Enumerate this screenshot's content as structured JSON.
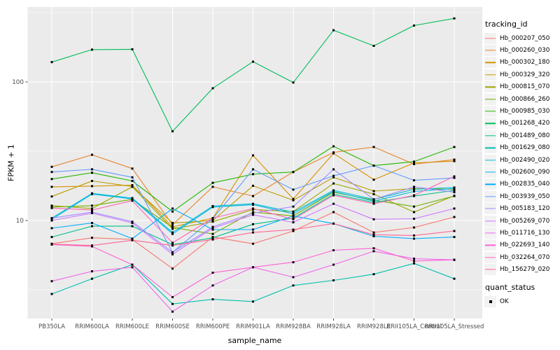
{
  "figure": {
    "background": "#FFFFFF",
    "panel_background": "#EBEBEB",
    "grid_color": "#FFFFFF",
    "legend_key_background": "#F2F2F2",
    "axis_text_color": "#4D4D4D",
    "tick_mark_color": "#333333",
    "point_color": "#000000"
  },
  "chart_data": {
    "type": "line",
    "title": "",
    "xlabel": "sample_name",
    "ylabel": "FPKM + 1",
    "y_scale": "log10",
    "y_ticks": [
      10,
      100
    ],
    "y_tick_labels": [
      "10",
      "100"
    ],
    "y_minor_breaks": [
      3.162,
      31.623,
      316.228
    ],
    "ylim": [
      1.95,
      350
    ],
    "grid": true,
    "legend_position": "right",
    "point_marker": {
      "shape": "square",
      "color": "#000000",
      "size": 3
    },
    "categories": [
      "PB350LA",
      "RRIM600LA",
      "RRIM600LE",
      "RRIM600SE",
      "RRIM600PE",
      "RRIM901LA",
      "RRIM928BA",
      "RRIM928LA",
      "RRIM928LE",
      "RRII105LA_Control",
      "RRII105LA_Stressed"
    ],
    "series": [
      {
        "name": "Hb_000207_050",
        "color": "#F8766D",
        "values": [
          6.8,
          7.5,
          7.3,
          4.5,
          7.6,
          6.8,
          8.4,
          11.5,
          8.2,
          8.9,
          10.6
        ]
      },
      {
        "name": "Hb_000260_030",
        "color": "#E9842C",
        "values": [
          24.4,
          29.8,
          23.7,
          9.3,
          17.5,
          15.0,
          22.4,
          31.0,
          33.9,
          25.5,
          27.5
        ]
      },
      {
        "name": "Hb_000302_180",
        "color": "#D69100",
        "values": [
          17.5,
          17.7,
          18.0,
          9.0,
          10.4,
          29.5,
          14.3,
          30.5,
          19.7,
          26.0,
          26.8
        ]
      },
      {
        "name": "Hb_000329_320",
        "color": "#BC9D00",
        "values": [
          14.9,
          19.3,
          17.6,
          9.6,
          10.0,
          17.8,
          14.0,
          20.5,
          16.3,
          17.0,
          16.8
        ]
      },
      {
        "name": "Hb_000815_070",
        "color": "#9CA700",
        "values": [
          12.8,
          12.2,
          17.5,
          8.7,
          9.8,
          12.0,
          11.6,
          18.5,
          15.5,
          11.5,
          15.1
        ]
      },
      {
        "name": "Hb_000866_260",
        "color": "#6FB000",
        "values": [
          12.5,
          12.8,
          14.2,
          8.9,
          8.0,
          11.5,
          10.8,
          16.0,
          14.0,
          12.6,
          15.0
        ]
      },
      {
        "name": "Hb_000985_030",
        "color": "#24B700",
        "values": [
          19.9,
          22.1,
          19.3,
          11.6,
          18.7,
          21.6,
          22.4,
          34.3,
          24.9,
          26.6,
          33.9
        ]
      },
      {
        "name": "Hb_001268_420",
        "color": "#00BC59",
        "values": [
          139,
          171,
          172,
          44,
          90,
          140,
          99,
          236,
          182,
          255,
          287
        ]
      },
      {
        "name": "Hb_001489_080",
        "color": "#00C087",
        "values": [
          7.6,
          9.1,
          9.1,
          6.7,
          7.5,
          9.4,
          10.4,
          15.5,
          13.5,
          15.0,
          16.5
        ]
      },
      {
        "name": "Hb_001629_080",
        "color": "#00C0AF",
        "values": [
          2.95,
          3.8,
          4.8,
          2.5,
          2.7,
          2.6,
          3.4,
          3.7,
          4.1,
          4.9,
          3.8
        ]
      },
      {
        "name": "Hb_002490_020",
        "color": "#00BDD0",
        "values": [
          10.4,
          15.7,
          14.5,
          8.2,
          12.7,
          13.2,
          11.5,
          16.5,
          14.2,
          16.8,
          17.3
        ]
      },
      {
        "name": "Hb_002600_090",
        "color": "#00B7E8",
        "values": [
          10.2,
          15.5,
          14.3,
          8.0,
          12.5,
          13.0,
          11.2,
          16.2,
          13.8,
          16.2,
          17.0
        ]
      },
      {
        "name": "Hb_002835_040",
        "color": "#00ACFC",
        "values": [
          8.8,
          9.6,
          7.4,
          12.2,
          8.6,
          8.6,
          10.8,
          9.5,
          7.7,
          7.4,
          7.6
        ]
      },
      {
        "name": "Hb_003939_050",
        "color": "#619CFF",
        "values": [
          22.4,
          23.4,
          20.5,
          5.9,
          10.3,
          23.4,
          16.7,
          21.0,
          24.9,
          19.5,
          20.3
        ]
      },
      {
        "name": "Hb_005183_120",
        "color": "#9F8CFF",
        "values": [
          10.4,
          11.5,
          9.8,
          5.9,
          9.0,
          11.3,
          12.6,
          23.4,
          14.2,
          17.5,
          16.0
        ]
      },
      {
        "name": "Hb_005269_070",
        "color": "#CE78FF",
        "values": [
          10.0,
          11.3,
          9.6,
          5.7,
          8.8,
          11.0,
          9.7,
          13.2,
          10.2,
          10.3,
          12.2
        ]
      },
      {
        "name": "Hb_011716_130",
        "color": "#EF67EB",
        "values": [
          3.65,
          4.3,
          4.6,
          2.2,
          3.4,
          4.6,
          3.9,
          4.8,
          6.0,
          5.3,
          5.2
        ]
      },
      {
        "name": "Hb_022693_140",
        "color": "#FF61D7",
        "values": [
          6.7,
          6.5,
          4.8,
          2.8,
          4.2,
          4.6,
          5.0,
          6.1,
          6.3,
          5.1,
          5.2
        ]
      },
      {
        "name": "Hb_032264_070",
        "color": "#FF63B6",
        "values": [
          12.3,
          11.9,
          13.9,
          6.9,
          10.4,
          12.2,
          10.2,
          15.2,
          13.2,
          15.2,
          20.8
        ]
      },
      {
        "name": "Hb_156279_020",
        "color": "#FF6692",
        "values": [
          6.75,
          6.6,
          7.2,
          6.6,
          7.3,
          8.2,
          8.6,
          9.5,
          7.9,
          7.8,
          8.4
        ]
      }
    ],
    "legend": {
      "tracking_title": "tracking_id",
      "quant_title": "quant_status",
      "quant_items": [
        {
          "label": "OK",
          "marker": "black-square"
        }
      ]
    }
  }
}
